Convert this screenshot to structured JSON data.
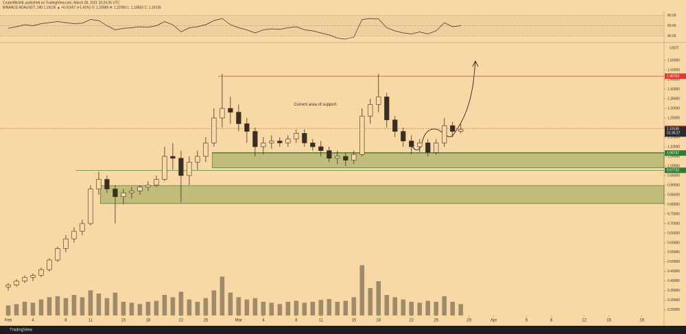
{
  "header": {
    "author_line": "CryptoMichNL published on TradingView.com, March 28, 2021 10:24:35 UTC",
    "symbol_line": "BINANCE:ADAUSDT, 240  1.19135 ▲ +0.01657 (+1.41%)  O: 1.20589  H: 1.22000  L: 1.18553  C: 1.19135"
  },
  "footer": {
    "logo": "TradingView"
  },
  "chart_data": {
    "type": "candlestick",
    "currency": "USDT",
    "x": [
      0,
      1,
      2,
      3,
      4,
      5,
      6,
      7,
      8,
      9,
      10,
      11,
      12,
      13,
      14,
      15,
      16,
      17,
      18,
      19,
      20,
      21,
      22,
      23,
      24,
      25,
      26,
      27,
      28,
      29,
      30,
      31,
      32,
      33,
      34,
      35,
      36,
      37,
      38,
      39,
      40,
      41,
      42,
      43,
      44,
      45,
      46,
      47,
      48,
      49,
      50,
      51,
      52,
      53,
      54,
      55
    ],
    "open": [
      0.37,
      0.38,
      0.4,
      0.42,
      0.43,
      0.46,
      0.51,
      0.57,
      0.62,
      0.66,
      0.7,
      0.88,
      0.93,
      0.88,
      0.84,
      0.86,
      0.87,
      0.89,
      0.9,
      0.93,
      1.05,
      1.04,
      0.95,
      1.02,
      1.05,
      1.12,
      1.25,
      1.3,
      1.28,
      1.22,
      1.18,
      1.1,
      1.12,
      1.13,
      1.12,
      1.14,
      1.17,
      1.12,
      1.1,
      1.08,
      1.04,
      1.05,
      1.03,
      1.06,
      1.26,
      1.32,
      1.36,
      1.24,
      1.18,
      1.13,
      1.1,
      1.12,
      1.07,
      1.12,
      1.21,
      1.18
    ],
    "high": [
      0.39,
      0.41,
      0.43,
      0.44,
      0.47,
      0.52,
      0.58,
      0.64,
      0.68,
      0.72,
      0.9,
      0.97,
      0.95,
      0.9,
      0.88,
      0.89,
      0.9,
      0.92,
      0.95,
      1.1,
      1.12,
      1.08,
      1.05,
      1.08,
      1.15,
      1.3,
      1.48,
      1.36,
      1.32,
      1.25,
      1.2,
      1.15,
      1.16,
      1.15,
      1.16,
      1.19,
      1.19,
      1.14,
      1.13,
      1.1,
      1.08,
      1.07,
      1.08,
      1.3,
      1.35,
      1.48,
      1.38,
      1.26,
      1.2,
      1.16,
      1.14,
      1.14,
      1.14,
      1.25,
      1.23,
      1.22
    ],
    "low": [
      0.35,
      0.37,
      0.39,
      0.4,
      0.42,
      0.45,
      0.5,
      0.55,
      0.6,
      0.64,
      0.69,
      0.85,
      0.86,
      0.7,
      0.8,
      0.83,
      0.85,
      0.87,
      0.89,
      0.92,
      0.98,
      0.81,
      0.9,
      0.98,
      1.02,
      1.1,
      1.2,
      1.22,
      1.18,
      1.12,
      1.05,
      1.06,
      1.09,
      1.1,
      1.1,
      1.12,
      1.1,
      1.08,
      1.05,
      1.02,
      1.01,
      1.0,
      1.01,
      1.05,
      1.22,
      1.28,
      1.2,
      1.15,
      1.1,
      1.06,
      1.07,
      1.05,
      1.06,
      1.1,
      1.15,
      1.17
    ],
    "close": [
      0.38,
      0.4,
      0.42,
      0.43,
      0.46,
      0.51,
      0.57,
      0.62,
      0.66,
      0.7,
      0.88,
      0.93,
      0.88,
      0.84,
      0.86,
      0.87,
      0.89,
      0.9,
      0.93,
      1.05,
      1.04,
      0.95,
      1.02,
      1.05,
      1.12,
      1.25,
      1.3,
      1.28,
      1.22,
      1.18,
      1.1,
      1.12,
      1.13,
      1.12,
      1.14,
      1.17,
      1.12,
      1.1,
      1.08,
      1.04,
      1.05,
      1.03,
      1.06,
      1.26,
      1.32,
      1.36,
      1.24,
      1.18,
      1.13,
      1.1,
      1.12,
      1.07,
      1.12,
      1.21,
      1.18,
      1.19
    ],
    "volume": [
      22,
      25,
      30,
      28,
      35,
      40,
      42,
      38,
      45,
      40,
      55,
      48,
      38,
      50,
      30,
      28,
      25,
      30,
      32,
      45,
      40,
      52,
      35,
      30,
      38,
      55,
      85,
      50,
      40,
      35,
      38,
      30,
      28,
      25,
      30,
      32,
      28,
      30,
      34,
      36,
      30,
      32,
      40,
      110,
      60,
      75,
      45,
      40,
      35,
      30,
      28,
      32,
      30,
      42,
      30,
      25
    ],
    "vlim": [
      0,
      150
    ],
    "xlim": [
      -1,
      79.7
    ],
    "xticks": [
      {
        "value": 0,
        "label": "Feb"
      },
      {
        "value": 3,
        "label": "4"
      },
      {
        "value": 7,
        "label": "8"
      },
      {
        "value": 10,
        "label": "11"
      },
      {
        "value": 14,
        "label": "15"
      },
      {
        "value": 17,
        "label": "18"
      },
      {
        "value": 21,
        "label": "22"
      },
      {
        "value": 24,
        "label": "25"
      },
      {
        "value": 28,
        "label": "Mar"
      },
      {
        "value": 31,
        "label": "4"
      },
      {
        "value": 35,
        "label": "8"
      },
      {
        "value": 38,
        "label": "11"
      },
      {
        "value": 42,
        "label": "15"
      },
      {
        "value": 45,
        "label": "18"
      },
      {
        "value": 49,
        "label": "22"
      },
      {
        "value": 52,
        "label": "25"
      },
      {
        "value": 56,
        "label": "29"
      },
      {
        "value": 59,
        "label": "Apr"
      },
      {
        "value": 63,
        "label": "5"
      },
      {
        "value": 66,
        "label": "8"
      },
      {
        "value": 70,
        "label": "12"
      },
      {
        "value": 73,
        "label": "15"
      },
      {
        "value": 77,
        "label": "19"
      }
    ],
    "ylim": [
      0.221,
      1.643
    ],
    "yticks": [
      {
        "value": 0.25,
        "label": "0.25000"
      },
      {
        "value": 0.3,
        "label": "0.30000"
      },
      {
        "value": 0.35,
        "label": "0.35000"
      },
      {
        "value": 0.4,
        "label": "0.40000"
      },
      {
        "value": 0.45,
        "label": "0.45000"
      },
      {
        "value": 0.5,
        "label": "0.50000"
      },
      {
        "value": 0.55,
        "label": "0.55000"
      },
      {
        "value": 0.6,
        "label": "0.60000"
      },
      {
        "value": 0.65,
        "label": "0.65000"
      },
      {
        "value": 0.7,
        "label": "0.70000"
      },
      {
        "value": 0.75,
        "label": "0.75000"
      },
      {
        "value": 0.8,
        "label": "0.80000"
      },
      {
        "value": 0.85,
        "label": "0.85000"
      },
      {
        "value": 0.9,
        "label": "0.90000"
      },
      {
        "value": 0.95,
        "label": "0.95000"
      },
      {
        "value": 1.0,
        "label": "1.00000"
      },
      {
        "value": 1.05,
        "label": "1.05000"
      },
      {
        "value": 1.1,
        "label": "1.10000"
      },
      {
        "value": 1.15,
        "label": "1.15000"
      },
      {
        "value": 1.2,
        "label": "1.20000"
      },
      {
        "value": 1.25,
        "label": "1.25000"
      },
      {
        "value": 1.3,
        "label": "1.30000"
      },
      {
        "value": 1.35,
        "label": "1.35000"
      },
      {
        "value": 1.4,
        "label": "1.40000"
      },
      {
        "value": 1.45,
        "label": "1.45000"
      },
      {
        "value": 1.5,
        "label": "1.50000"
      },
      {
        "value": 1.55,
        "label": "1.55000"
      }
    ],
    "levels": [
      {
        "value": 1.46753,
        "color": "#e53935",
        "from": 25.5,
        "dashed": false
      },
      {
        "value": 1.19567,
        "color": "#e53935",
        "from": -1,
        "dashed": true
      },
      {
        "value": 1.06737,
        "color": "#2e7d32",
        "from": 24.8,
        "dashed": false
      },
      {
        "value": 0.97732,
        "color": "#2e7d32",
        "from": 8.2,
        "dashed": false
      }
    ],
    "last_price": {
      "value": 1.19135,
      "countdown": "01:35:27"
    },
    "zones": [
      {
        "low": 0.99,
        "high": 1.07,
        "from": 24.8
      },
      {
        "low": 0.804,
        "high": 0.897,
        "from": 11.2
      }
    ],
    "annotation": {
      "text": "Current area of support.",
      "x": 34.7,
      "y": 1.32
    },
    "rsi": {
      "values": [
        55,
        58,
        62,
        60,
        64,
        66,
        68,
        66,
        64,
        65,
        72,
        70,
        60,
        52,
        55,
        56,
        58,
        57,
        60,
        68,
        62,
        48,
        56,
        58,
        62,
        70,
        74,
        62,
        56,
        52,
        46,
        52,
        54,
        53,
        56,
        58,
        52,
        50,
        46,
        42,
        36,
        34,
        38,
        72,
        74,
        73,
        56,
        50,
        46,
        44,
        48,
        44,
        50,
        66,
        58,
        60
      ],
      "ylim": [
        30,
        90
      ],
      "yticks": [
        {
          "value": 80,
          "label": "80.00"
        },
        {
          "value": 60,
          "label": "60.00"
        },
        {
          "value": 40,
          "label": "40.00"
        }
      ]
    }
  }
}
